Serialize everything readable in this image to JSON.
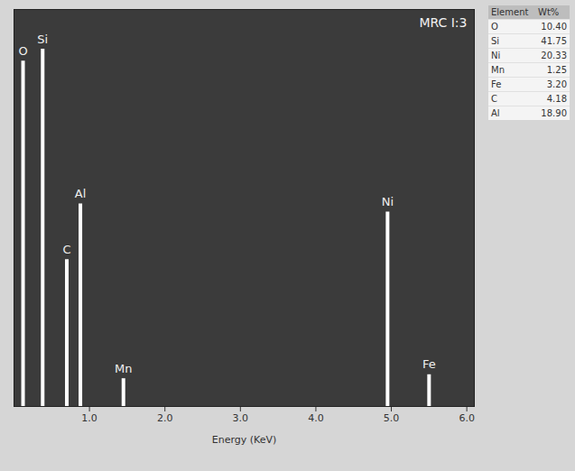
{
  "chart_data": {
    "type": "spectrum",
    "title": "MRC I:3",
    "x_label": "Energy (KeV)",
    "x": [
      0.12,
      0.38,
      0.7,
      0.88,
      1.45,
      4.95,
      5.5
    ],
    "values": [
      87,
      90,
      37,
      51,
      7,
      49,
      8
    ],
    "point_labels": [
      "O",
      "Si",
      "C",
      "Al",
      "Mn",
      "Ni",
      "Fe"
    ],
    "color": "#ffffff",
    "xlim": [
      0,
      6.1
    ],
    "xticks": [
      1,
      2,
      3,
      4,
      5,
      6
    ],
    "ylim": [
      0,
      100
    ],
    "yticks": [],
    "tick_labels": "x",
    "grid": false,
    "table": {
      "columns": [
        "Element",
        "Wt%"
      ],
      "rows": [
        [
          "O",
          "10.40"
        ],
        [
          "Si",
          "41.75"
        ],
        [
          "Ni",
          "20.33"
        ],
        [
          "Mn",
          "1.25"
        ],
        [
          "Fe",
          "3.20"
        ],
        [
          "C",
          "4.18"
        ],
        [
          "Al",
          "18.90"
        ]
      ]
    }
  }
}
